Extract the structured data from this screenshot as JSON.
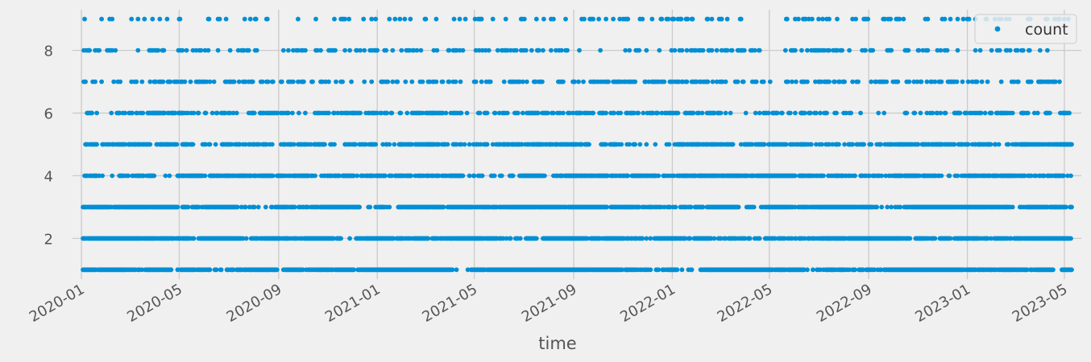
{
  "chart_data": {
    "type": "scatter",
    "xlabel": "time",
    "ylabel": "",
    "x_type": "date",
    "xlim": [
      "2019-12-21",
      "2023-05-22"
    ],
    "ylim": [
      0.7,
      9.3
    ],
    "x_ticks": [
      "2020-01",
      "2020-05",
      "2020-09",
      "2021-01",
      "2021-05",
      "2021-09",
      "2022-01",
      "2022-05",
      "2022-09",
      "2023-01",
      "2023-05"
    ],
    "y_ticks": [
      2,
      4,
      6,
      8
    ],
    "grid": true,
    "legend_position": "top-right",
    "data_range": [
      "2020-01-03",
      "2023-05-10"
    ],
    "series": [
      {
        "name": "count",
        "color": "#008fd5",
        "marker": "circle",
        "values_present": [
          1,
          2,
          3,
          4,
          5,
          6,
          7,
          8,
          9
        ],
        "density_by_value": {
          "1": 1.0,
          "2": 0.97,
          "3": 0.85,
          "4": 0.68,
          "5": 0.45,
          "6": 0.35,
          "7": 0.25,
          "8": 0.18,
          "9": 0.12
        }
      }
    ]
  }
}
